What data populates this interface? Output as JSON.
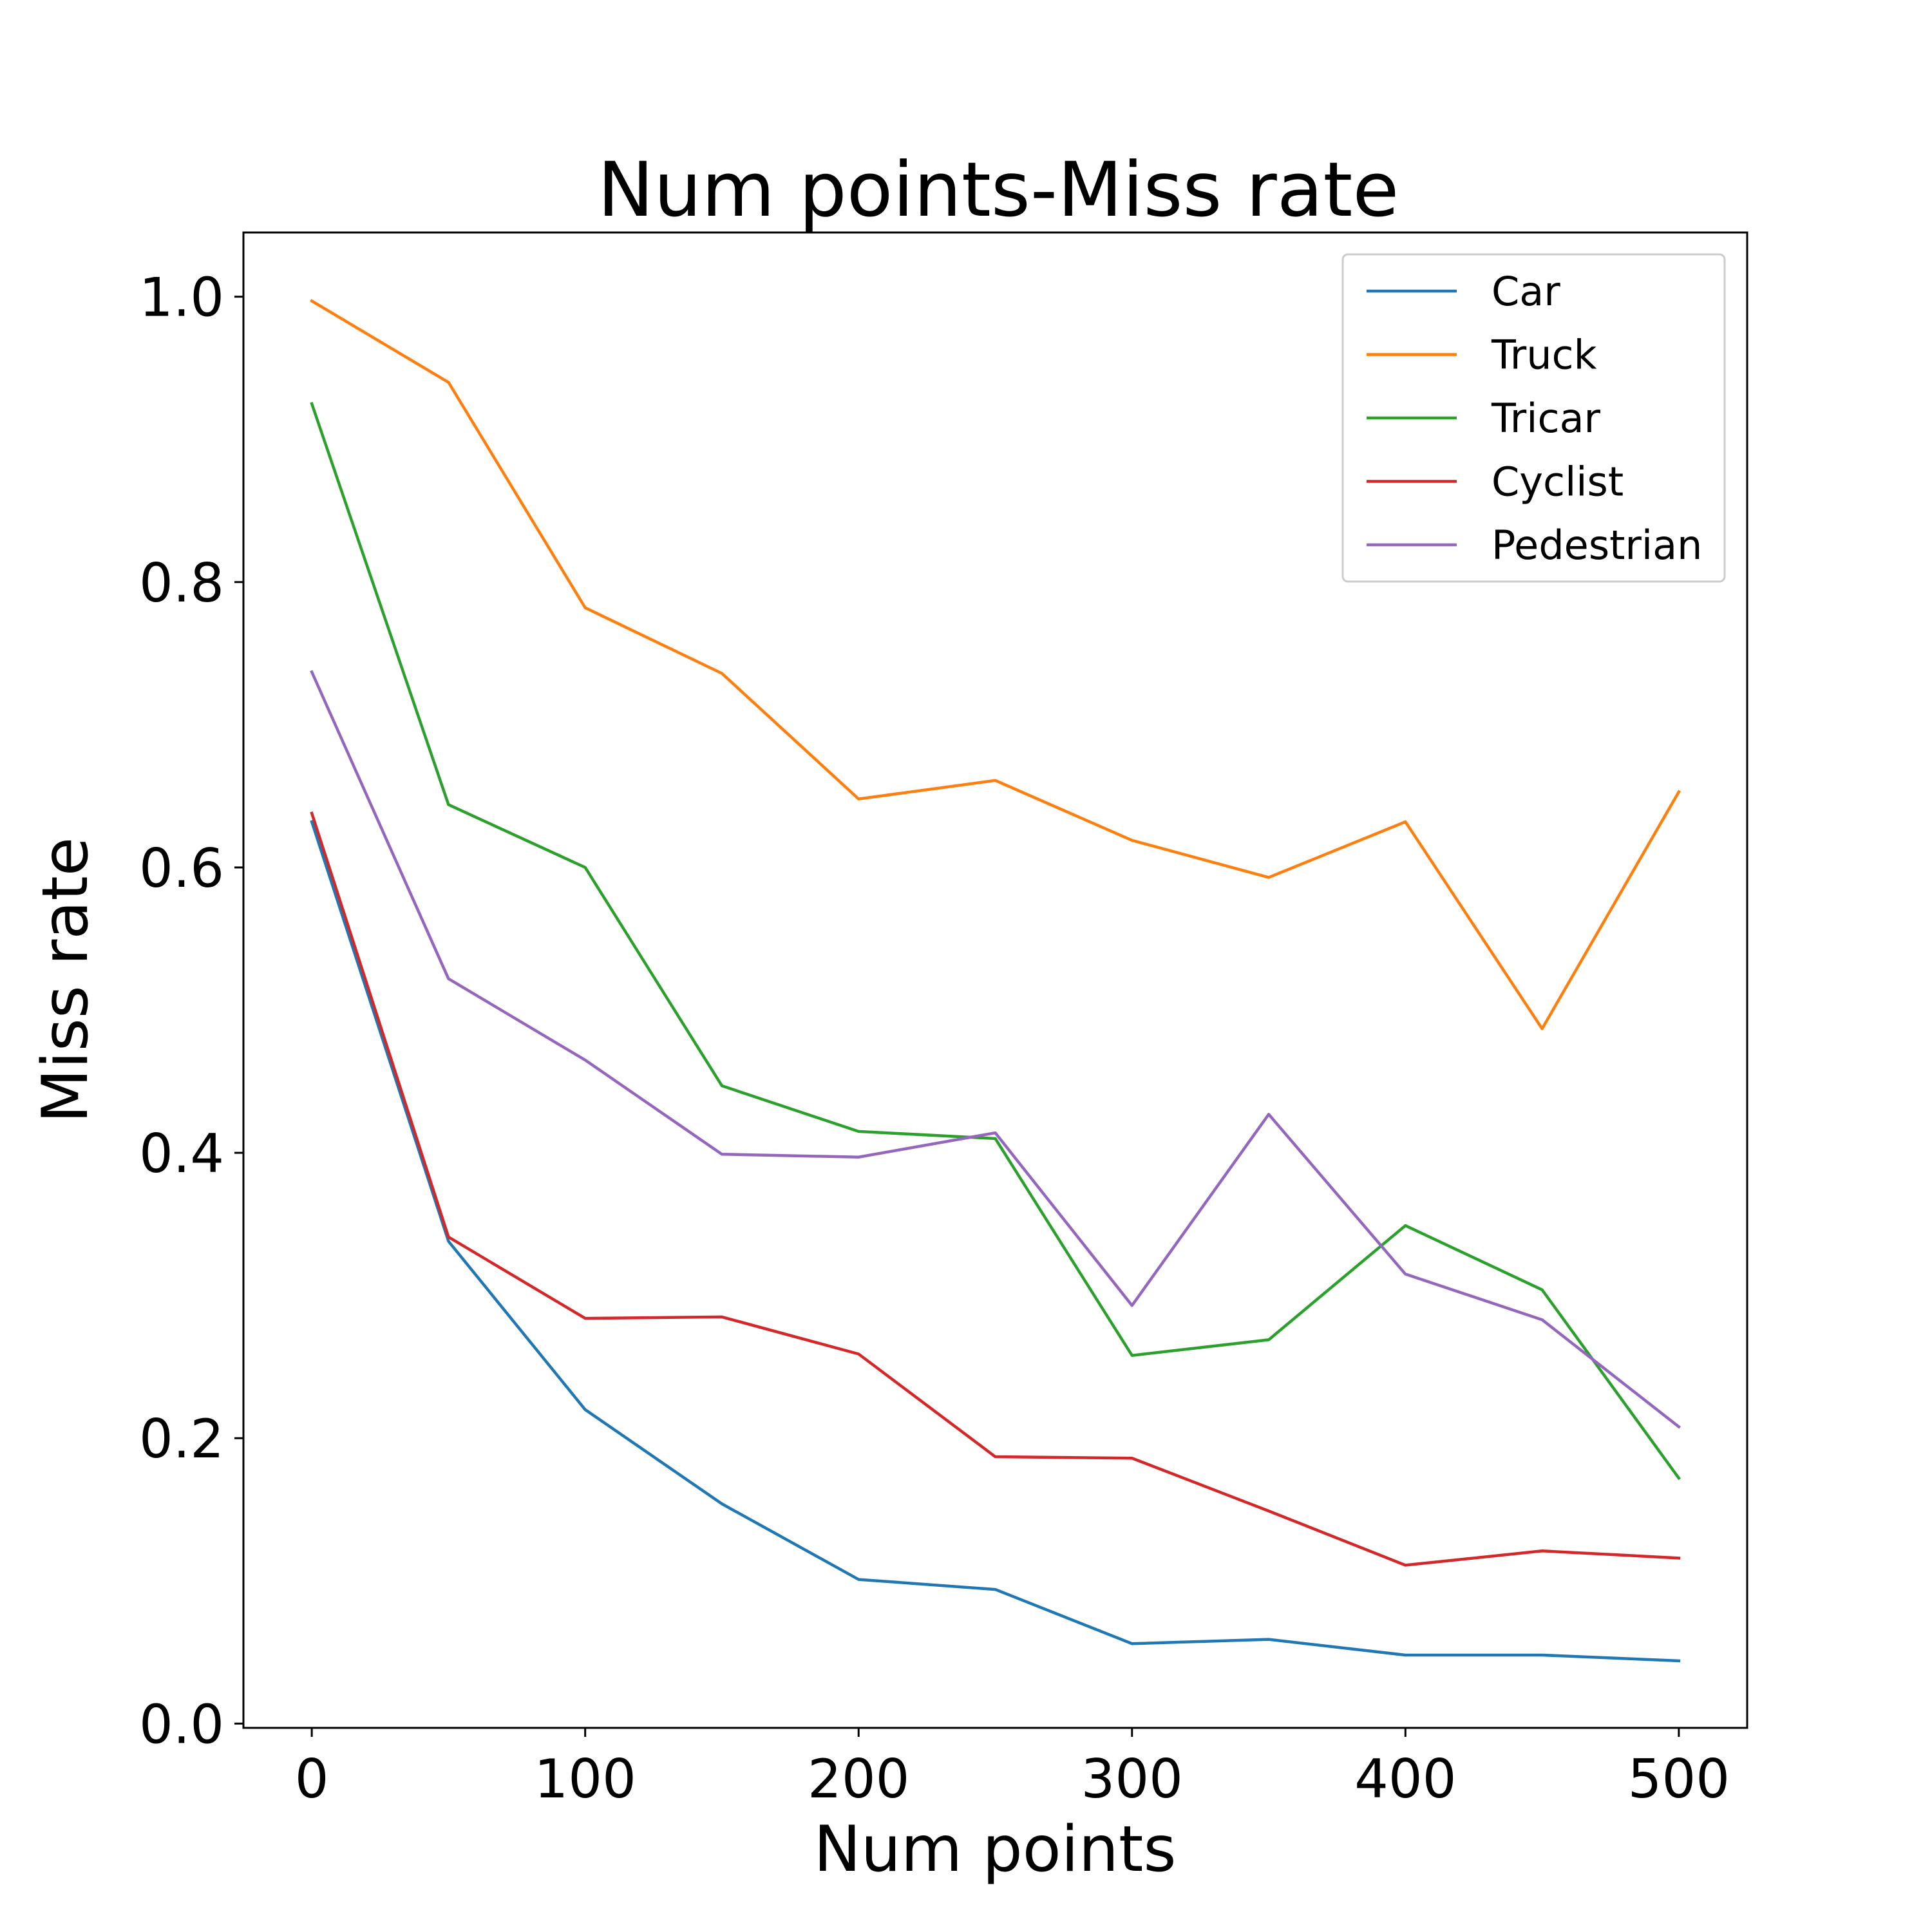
{
  "chart_data": {
    "type": "line",
    "title": "Num points-Miss rate",
    "xlabel": "Num points",
    "ylabel": "Miss rate",
    "x": [
      0,
      50,
      100,
      150,
      200,
      250,
      300,
      350,
      400,
      450,
      500
    ],
    "xlim": [
      -25,
      525
    ],
    "ylim": [
      -0.003,
      1.045
    ],
    "xticks": [
      0,
      100,
      200,
      300,
      400,
      500
    ],
    "xtick_labels": [
      "0",
      "100",
      "200",
      "300",
      "400",
      "500"
    ],
    "yticks": [
      0.0,
      0.2,
      0.4,
      0.6,
      0.8,
      1.0
    ],
    "ytick_labels": [
      "0.0",
      "0.2",
      "0.4",
      "0.6",
      "0.8",
      "1.0"
    ],
    "grid": false,
    "legend_position": "top-right",
    "series": [
      {
        "name": "Car",
        "color": "#1f77b4",
        "values": [
          0.632,
          0.338,
          0.22,
          0.154,
          0.101,
          0.094,
          0.056,
          0.059,
          0.048,
          0.048,
          0.044
        ]
      },
      {
        "name": "Truck",
        "color": "#ff7f0e",
        "values": [
          0.997,
          0.94,
          0.782,
          0.736,
          0.648,
          0.661,
          0.619,
          0.593,
          0.632,
          0.487,
          0.653
        ]
      },
      {
        "name": "Tricar",
        "color": "#2ca02c",
        "values": [
          0.925,
          0.644,
          0.6,
          0.447,
          0.415,
          0.41,
          0.258,
          0.269,
          0.349,
          0.304,
          0.172
        ]
      },
      {
        "name": "Cyclist",
        "color": "#d62728",
        "values": [
          0.638,
          0.341,
          0.284,
          0.285,
          0.259,
          0.187,
          0.186,
          0.149,
          0.111,
          0.121,
          0.116
        ]
      },
      {
        "name": "Pedestrian",
        "color": "#9467bd",
        "values": [
          0.737,
          0.522,
          0.465,
          0.399,
          0.397,
          0.414,
          0.293,
          0.427,
          0.315,
          0.283,
          0.208
        ]
      }
    ]
  }
}
